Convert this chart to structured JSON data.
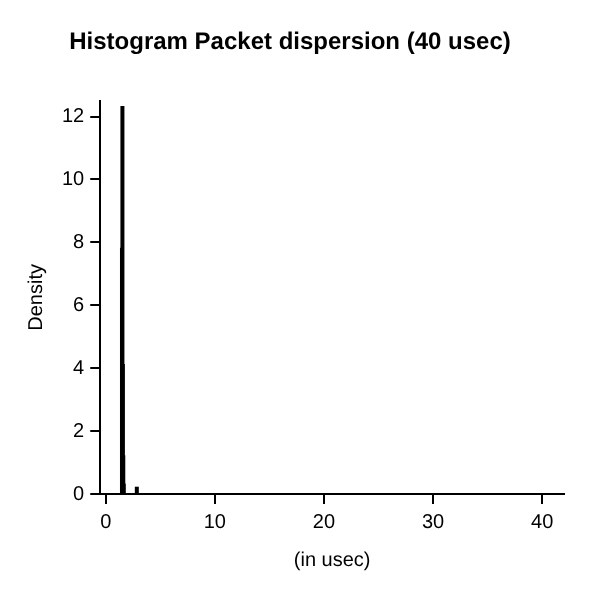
{
  "chart_data": {
    "type": "histogram",
    "title": "Histogram Packet dispersion (40 usec)",
    "xlabel": "(in usec)",
    "ylabel": "Density",
    "bins": [
      1.4,
      1.44,
      1.48,
      1.52,
      1.56,
      1.6,
      2.76,
      2.8,
      41.0
    ],
    "values": [
      7.8,
      12.3,
      4.1,
      1.2,
      0.3,
      0,
      0.2,
      0
    ],
    "color": "#000000",
    "xlim": [
      -0.5,
      42
    ],
    "xticks": [
      0,
      10,
      20,
      30,
      40
    ],
    "ylim": [
      0,
      12.5
    ],
    "yticks": [
      0,
      2,
      4,
      6,
      8,
      10,
      12
    ],
    "grid": false
  }
}
